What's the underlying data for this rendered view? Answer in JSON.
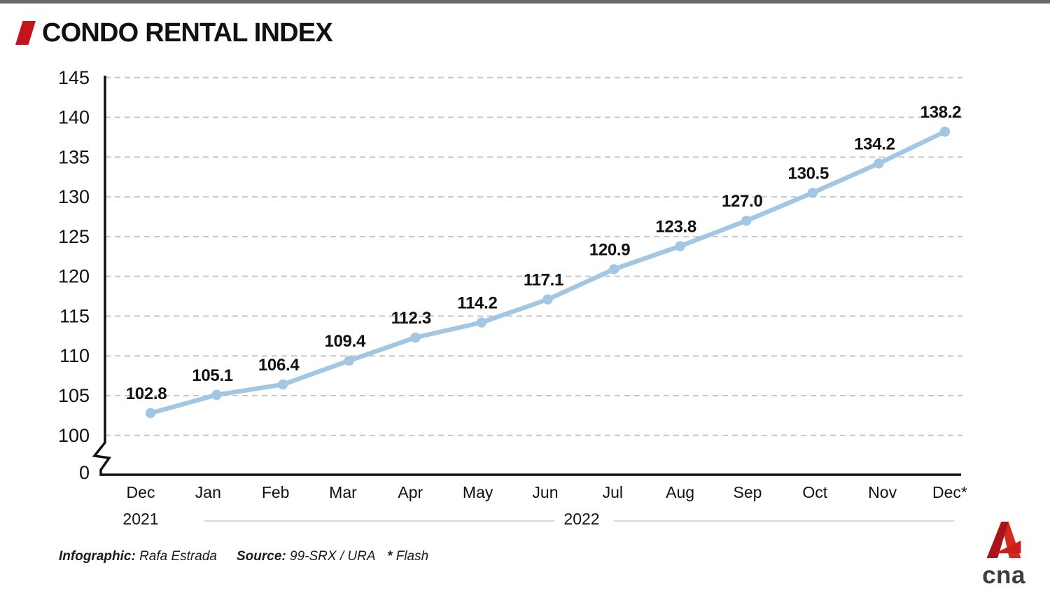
{
  "page": {
    "top_bar_color": "#686868",
    "background": "#ffffff"
  },
  "header": {
    "title": "CONDO RENTAL INDEX",
    "accent_color": "#c3161c"
  },
  "chart_data": {
    "type": "line",
    "title": "CONDO RENTAL INDEX",
    "x": [
      "Dec",
      "Jan",
      "Feb",
      "Mar",
      "Apr",
      "May",
      "Jun",
      "Jul",
      "Aug",
      "Sep",
      "Oct",
      "Nov",
      "Dec*"
    ],
    "values": [
      102.8,
      105.1,
      106.4,
      109.4,
      112.3,
      114.2,
      117.1,
      120.9,
      123.8,
      127.0,
      130.5,
      134.2,
      138.2
    ],
    "years": [
      {
        "label": "2021",
        "applies_to": [
          "Dec"
        ]
      },
      {
        "label": "2022",
        "applies_to": [
          "Jan",
          "Feb",
          "Mar",
          "Apr",
          "May",
          "Jun",
          "Jul",
          "Aug",
          "Sep",
          "Oct",
          "Nov",
          "Dec*"
        ]
      }
    ],
    "yticks": [
      0,
      100,
      105,
      110,
      115,
      120,
      125,
      130,
      135,
      140,
      145
    ],
    "ylim": [
      100,
      145
    ],
    "axis_break_between": [
      0,
      100
    ],
    "grid": "horizontal-dashed",
    "legend": "none",
    "line_color": "#a3c7e2",
    "marker_color": "#a3c7e2",
    "grid_color": "#c7c7c7",
    "axis_color": "#111111",
    "data_label_color": "#111111"
  },
  "footer": {
    "infographic_label": "Infographic:",
    "infographic_value": "Rafa Estrada",
    "source_label": "Source:",
    "source_value": "99-SRX / URA",
    "flash_symbol": "*",
    "flash_text": "Flash"
  },
  "logo": {
    "text": "cna",
    "red": "#d7281d",
    "dark_red": "#aa1319",
    "text_color": "#3d3d3d"
  }
}
